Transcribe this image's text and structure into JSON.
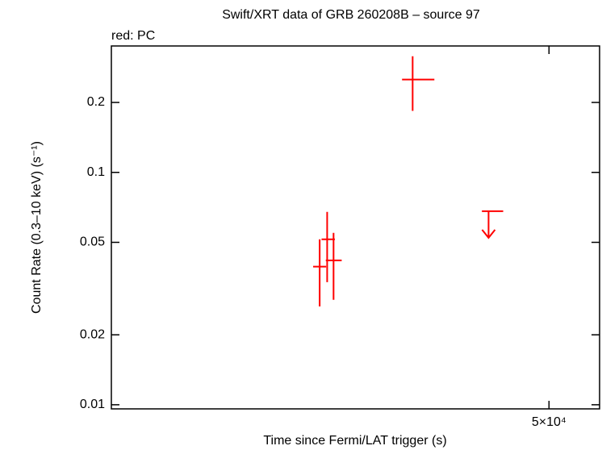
{
  "chart_data": {
    "type": "scatter",
    "title": "Swift/XRT data of GRB 260208B – source 97",
    "subtitle": "red: PC",
    "x_label": "Time since Fermi/LAT trigger (s)",
    "y_label": "Count Rate (0.3–10 keV) (s⁻¹)",
    "x_log": true,
    "y_log": true,
    "xlim": [
      23350,
      54600
    ],
    "ylim": [
      0.0096,
      0.35
    ],
    "xticks": [
      {
        "value": 50000,
        "label": "5×10⁴"
      }
    ],
    "yticks": [
      0.01,
      0.02,
      0.05,
      0.1,
      0.2
    ],
    "series": [
      {
        "name": "PC",
        "color": "#ff0000",
        "x": [
          33550,
          33990,
          34370,
          39440
        ],
        "x_lo": [
          33170,
          33660,
          33910,
          38720
        ],
        "x_hi": [
          33930,
          34450,
          34860,
          40960
        ],
        "y": [
          0.0393,
          0.0515,
          0.0418,
          0.251
        ],
        "y_lo": [
          0.0265,
          0.0337,
          0.0283,
          0.184
        ],
        "y_hi": [
          0.0515,
          0.0676,
          0.0549,
          0.316
        ]
      },
      {
        "name": "PC upper limit",
        "color": "#ff0000",
        "upper_limit": true,
        "x": [
          45010
        ],
        "x_lo": [
          44490
        ],
        "x_hi": [
          46170
        ],
        "y": [
          0.0681
        ]
      }
    ]
  }
}
